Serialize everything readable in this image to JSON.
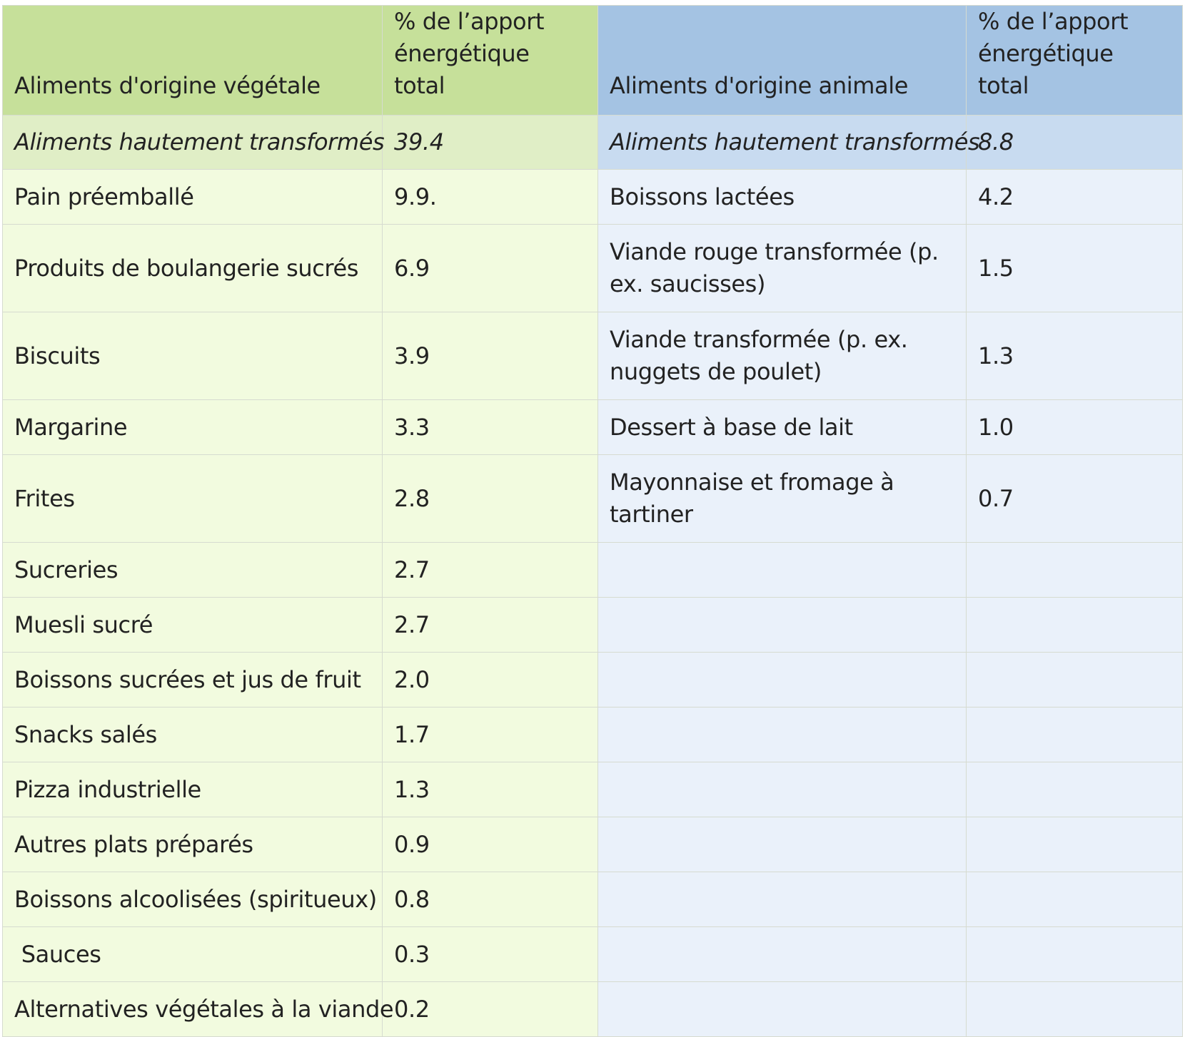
{
  "header": {
    "veg_title": "Aliments d'origine végétale",
    "veg_pct": "% de l’apport énergétique total",
    "ani_title": "Aliments d'origine animale",
    "ani_pct": "% de l’apport énergétique total"
  },
  "subtotal": {
    "veg_label": "Aliments hautement transformés",
    "veg_value": "39.4",
    "ani_label": "Aliments hautement transformés",
    "ani_value": "8.8"
  },
  "rows": [
    {
      "veg_label": "Pain préemballé",
      "veg_value": "9.9.",
      "ani_label": "Boissons lactées",
      "ani_value": "4.2"
    },
    {
      "veg_label": "Produits de boulangerie sucrés",
      "veg_value": "6.9",
      "ani_label": "Viande rouge transformée (p. ex. saucisses)",
      "ani_value": "1.5"
    },
    {
      "veg_label": "Biscuits",
      "veg_value": "3.9",
      "ani_label": "Viande transformée (p. ex. nuggets de poulet)",
      "ani_value": "1.3"
    },
    {
      "veg_label": "Margarine",
      "veg_value": "3.3",
      "ani_label": "Dessert à base de lait",
      "ani_value": "1.0"
    },
    {
      "veg_label": "Frites",
      "veg_value": "2.8",
      "ani_label": "Mayonnaise et fromage à tartiner",
      "ani_value": "0.7"
    },
    {
      "veg_label": "Sucreries",
      "veg_value": "2.7",
      "ani_label": "",
      "ani_value": ""
    },
    {
      "veg_label": "Muesli sucré",
      "veg_value": "2.7",
      "ani_label": "",
      "ani_value": ""
    },
    {
      "veg_label": "Boissons sucrées et jus de fruit",
      "veg_value": "2.0",
      "ani_label": "",
      "ani_value": ""
    },
    {
      "veg_label": "Snacks salés",
      "veg_value": "1.7",
      "ani_label": "",
      "ani_value": ""
    },
    {
      "veg_label": "Pizza industrielle",
      "veg_value": "1.3",
      "ani_label": "",
      "ani_value": ""
    },
    {
      "veg_label": "Autres plats préparés",
      "veg_value": "0.9",
      "ani_label": "",
      "ani_value": ""
    },
    {
      "veg_label": "Boissons alcoolisées (spiritueux)",
      "veg_value": "0.8",
      "ani_label": "",
      "ani_value": ""
    },
    {
      "veg_label": " Sauces",
      "veg_value": "0.3",
      "ani_label": "",
      "ani_value": ""
    },
    {
      "veg_label": "Alternatives végétales à la viande",
      "veg_value": "0.2",
      "ani_label": "",
      "ani_value": ""
    }
  ],
  "colors": {
    "veg_header": "#c6e09a",
    "ani_header": "#a4c3e3",
    "veg_subtotal": "#e0eec6",
    "ani_subtotal": "#c8dbf0",
    "veg_cell": "#f2fbdf",
    "ani_cell": "#eaf1fa"
  }
}
